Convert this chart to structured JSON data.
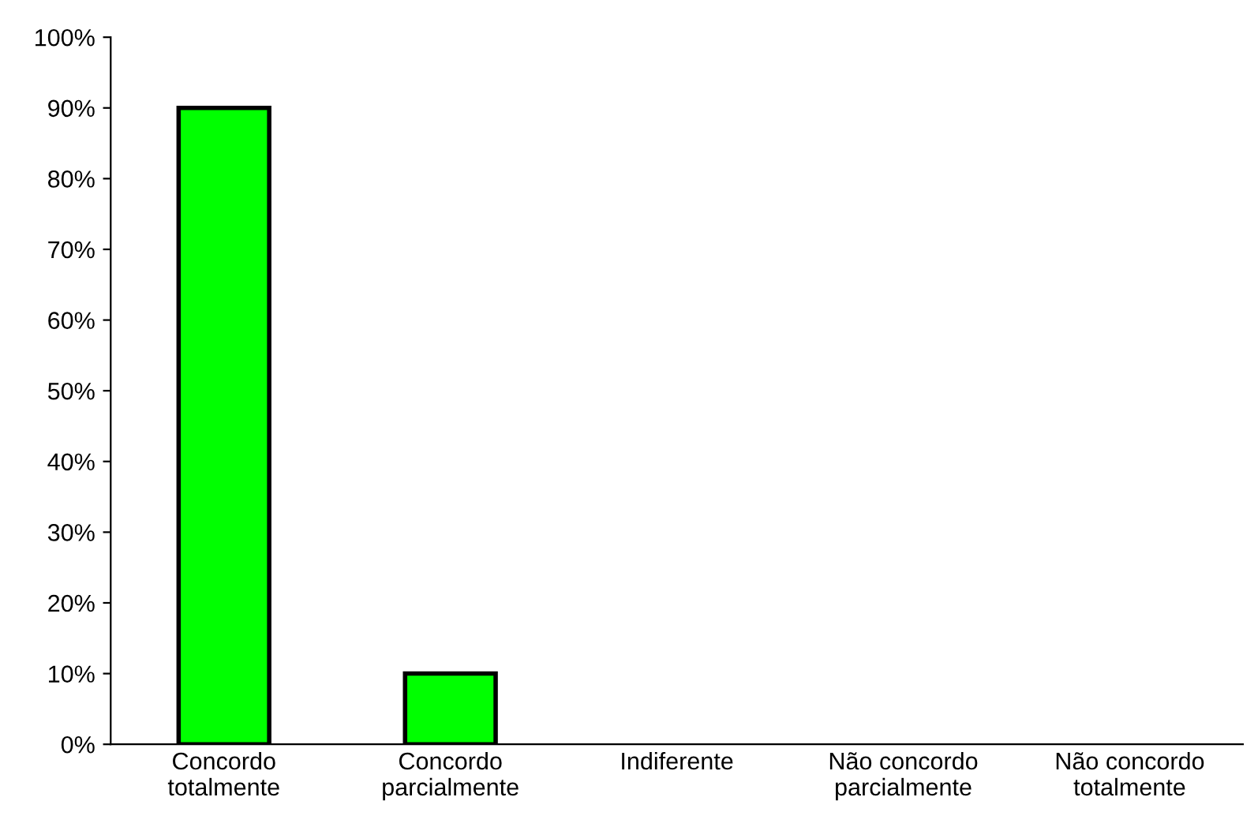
{
  "chart_data": {
    "type": "bar",
    "categories": [
      "Concordo\ntotalmente",
      "Concordo\nparcialmente",
      "Indiferente",
      "Não concordo\nparcialmente",
      "Não concordo\ntotalmente"
    ],
    "values": [
      90,
      10,
      0,
      0,
      0
    ],
    "color": "#00ff00",
    "ylim": [
      0,
      100
    ],
    "yticks": [
      {
        "value": 0,
        "label": "0%"
      },
      {
        "value": 10,
        "label": "10%"
      },
      {
        "value": 20,
        "label": "20%"
      },
      {
        "value": 30,
        "label": "30%"
      },
      {
        "value": 40,
        "label": "40%"
      },
      {
        "value": 50,
        "label": "50%"
      },
      {
        "value": 60,
        "label": "60%"
      },
      {
        "value": 70,
        "label": "70%"
      },
      {
        "value": 80,
        "label": "80%"
      },
      {
        "value": 90,
        "label": "90%"
      },
      {
        "value": 100,
        "label": "100%"
      }
    ],
    "grid": false
  }
}
